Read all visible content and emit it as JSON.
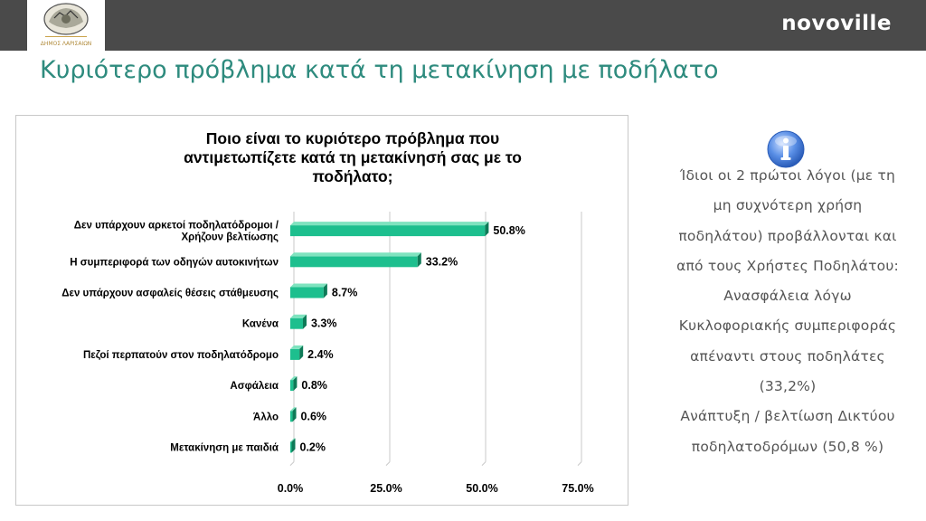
{
  "header": {
    "logo_text": "ΔΗΜΟΣ ΛΑΡΙΣΑΙΩΝ",
    "brand": "novoville"
  },
  "page_title": "Κυριότερο πρόβλημα κατά τη μετακίνηση με ποδήλατο",
  "chart_data": {
    "type": "bar",
    "orientation": "horizontal",
    "title_lines": [
      "Ποιο είναι το κυριότερο πρόβλημα που",
      "αντιμετωπίζετε κατά τη μετακίνησή σας με το",
      "ποδήλατο;"
    ],
    "categories": [
      [
        "Δεν υπάρχουν αρκετοί ποδηλατόδρομοι /",
        "Χρήζουν βελτίωσης"
      ],
      [
        "Η συμπεριφορά των οδηγών αυτοκινήτων"
      ],
      [
        "Δεν υπάρχουν ασφαλείς θέσεις στάθμευσης"
      ],
      [
        "Κανένα"
      ],
      [
        "Πεζοί περπατούν στον ποδηλατόδρομο"
      ],
      [
        "Ασφάλεια"
      ],
      [
        "Άλλο"
      ],
      [
        "Μετακίνηση με παιδιά"
      ]
    ],
    "values": [
      50.8,
      33.2,
      8.7,
      3.3,
      2.4,
      0.8,
      0.6,
      0.2
    ],
    "value_labels": [
      "50.8%",
      "33.2%",
      "8.7%",
      "3.3%",
      "2.4%",
      "0.8%",
      "0.6%",
      "0.2%"
    ],
    "xlim": [
      0,
      75
    ],
    "xticks": [
      0,
      25,
      50,
      75
    ],
    "xtick_labels": [
      "0.0%",
      "25.0%",
      "50.0%",
      "75.0%"
    ],
    "bar_color": "#1dbf8e",
    "bar_top_color": "#7fe3bf",
    "bar_dark_color": "#0e7a57",
    "grid": true
  },
  "info": {
    "icon": "info-icon",
    "lines": [
      "Ίδιοι οι 2 πρώτοι λόγοι (με τη",
      "μη συχνότερη χρήση",
      "ποδηλάτου) προβάλλονται και",
      "από τους Χρήστες Ποδηλάτου:",
      "Ανασφάλεια λόγω",
      "Κυκλοφοριακής συμπεριφοράς",
      "απέναντι στους ποδηλάτες",
      "(33,2%)",
      "Ανάπτυξη / βελτίωση Δικτύου",
      "ποδηλατοδρόμων (50,8 %)"
    ]
  },
  "colors": {
    "topbar": "#4a4a4a",
    "title": "#2e8b7e",
    "side_text": "#555555"
  }
}
